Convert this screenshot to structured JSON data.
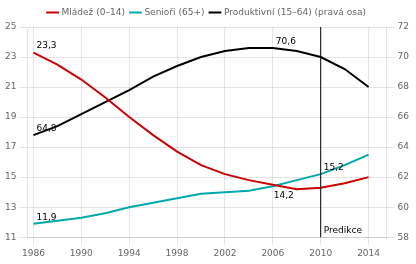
{
  "chart_data": {
    "type": "line",
    "x": [
      1986,
      1988,
      1990,
      1992,
      1994,
      1996,
      1998,
      2000,
      2002,
      2004,
      2006,
      2008,
      2010,
      2012,
      2014
    ],
    "series": [
      {
        "name": "Mládež (0–14)",
        "color": "#cc0000",
        "values": [
          23.3,
          22.5,
          21.5,
          20.3,
          19.0,
          17.8,
          16.7,
          15.8,
          15.2,
          14.8,
          14.5,
          14.2,
          14.3,
          14.6,
          15.0
        ]
      },
      {
        "name": "Senioři (65+)",
        "color": "#00aaaa",
        "values": [
          11.9,
          12.1,
          12.3,
          12.6,
          13.0,
          13.3,
          13.6,
          13.9,
          14.0,
          14.1,
          14.4,
          14.8,
          15.2,
          15.8,
          16.5
        ]
      },
      {
        "name": "Produktivní (15–64) (pravá osa)",
        "color": "#000000",
        "axis": "y2",
        "values": [
          64.8,
          65.4,
          66.2,
          67.0,
          67.8,
          68.7,
          69.4,
          70.0,
          70.4,
          70.6,
          70.6,
          70.4,
          70.0,
          69.2,
          68.0
        ]
      }
    ],
    "xlim": [
      1985.5,
      2015.5
    ],
    "xticks": [
      1986,
      1990,
      1994,
      1998,
      2002,
      2006,
      2010,
      2014
    ],
    "ylim": [
      11,
      25
    ],
    "yticks": [
      11,
      13,
      15,
      17,
      19,
      21,
      23,
      25
    ],
    "y2lim": [
      58,
      72
    ],
    "y2ticks": [
      58,
      60,
      62,
      64,
      66,
      68,
      70,
      72
    ],
    "grid": true,
    "legend": "top",
    "vlines": [
      {
        "x": 2010,
        "text": "Predikce"
      }
    ],
    "annotations": [
      {
        "text": "23,3",
        "x": 1986,
        "y": 23.3
      },
      {
        "text": "64,8",
        "x": 1986,
        "y": 64.8,
        "axis": "y2"
      },
      {
        "text": "11,9",
        "x": 1986,
        "y": 11.9
      },
      {
        "text": "70,6",
        "x": 2006,
        "y": 70.6,
        "axis": "y2"
      },
      {
        "text": "15,2",
        "x": 2010,
        "y": 15.2
      },
      {
        "text": "14,2",
        "x": 2008,
        "y": 14.2
      }
    ]
  }
}
